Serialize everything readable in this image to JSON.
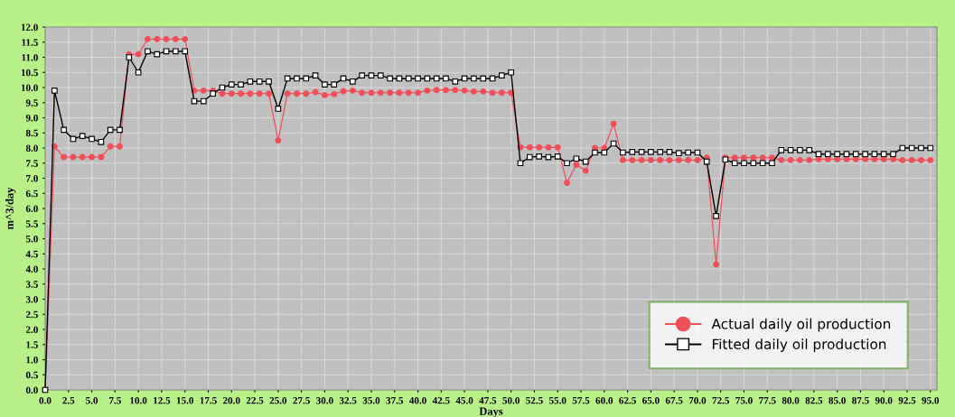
{
  "chart_data": {
    "type": "line",
    "xlabel": "Days",
    "ylabel": "m^3/day",
    "x": [
      0,
      1,
      2,
      3,
      4,
      5,
      6,
      7,
      8,
      9,
      10,
      11,
      12,
      13,
      14,
      15,
      16,
      17,
      18,
      19,
      20,
      21,
      22,
      23,
      24,
      25,
      26,
      27,
      28,
      29,
      30,
      31,
      32,
      33,
      34,
      35,
      36,
      37,
      38,
      39,
      40,
      41,
      42,
      43,
      44,
      45,
      46,
      47,
      48,
      49,
      50,
      51,
      52,
      53,
      54,
      55,
      56,
      57,
      58,
      59,
      60,
      61,
      62,
      63,
      64,
      65,
      66,
      67,
      68,
      69,
      70,
      71,
      72,
      73,
      74,
      75,
      76,
      77,
      78,
      79,
      80,
      81,
      82,
      83,
      84,
      85,
      86,
      87,
      88,
      89,
      90,
      91,
      92,
      93,
      94,
      95
    ],
    "series": [
      {
        "name": "Actual daily oil production",
        "color": "#f0505a",
        "marker": "circle",
        "values": [
          0,
          8.05,
          7.7,
          7.7,
          7.7,
          7.7,
          7.7,
          8.05,
          8.05,
          11.1,
          11.1,
          11.6,
          11.6,
          11.6,
          11.6,
          11.6,
          9.9,
          9.9,
          9.9,
          9.8,
          9.8,
          9.8,
          9.8,
          9.8,
          9.8,
          8.25,
          9.8,
          9.8,
          9.8,
          9.85,
          9.75,
          9.78,
          9.88,
          9.9,
          9.83,
          9.83,
          9.83,
          9.83,
          9.83,
          9.83,
          9.83,
          9.9,
          9.92,
          9.92,
          9.92,
          9.9,
          9.87,
          9.87,
          9.83,
          9.83,
          9.83,
          8.02,
          8.02,
          8.02,
          8.02,
          8.02,
          6.85,
          7.45,
          7.25,
          8.0,
          8.0,
          8.8,
          7.6,
          7.6,
          7.6,
          7.6,
          7.6,
          7.6,
          7.6,
          7.6,
          7.6,
          7.68,
          4.15,
          7.68,
          7.68,
          7.68,
          7.68,
          7.68,
          7.68,
          7.6,
          7.6,
          7.6,
          7.6,
          7.63,
          7.63,
          7.63,
          7.63,
          7.63,
          7.63,
          7.63,
          7.63,
          7.63,
          7.6,
          7.6,
          7.6,
          7.6
        ]
      },
      {
        "name": "Fitted daily oil production",
        "color": "#000000",
        "marker": "square",
        "values": [
          0,
          9.9,
          8.6,
          8.3,
          8.4,
          8.3,
          8.2,
          8.6,
          8.6,
          11.0,
          10.5,
          11.2,
          11.1,
          11.2,
          11.2,
          11.2,
          9.55,
          9.55,
          9.8,
          10.0,
          10.1,
          10.1,
          10.2,
          10.2,
          10.2,
          9.3,
          10.3,
          10.3,
          10.3,
          10.4,
          10.1,
          10.1,
          10.3,
          10.2,
          10.4,
          10.4,
          10.4,
          10.3,
          10.3,
          10.3,
          10.3,
          10.3,
          10.3,
          10.3,
          10.2,
          10.3,
          10.3,
          10.3,
          10.3,
          10.4,
          10.5,
          7.5,
          7.7,
          7.72,
          7.7,
          7.72,
          7.5,
          7.65,
          7.55,
          7.85,
          7.85,
          8.15,
          7.85,
          7.87,
          7.87,
          7.87,
          7.87,
          7.87,
          7.83,
          7.85,
          7.85,
          7.55,
          5.75,
          7.62,
          7.5,
          7.5,
          7.5,
          7.5,
          7.5,
          7.93,
          7.93,
          7.93,
          7.93,
          7.8,
          7.8,
          7.8,
          7.8,
          7.8,
          7.8,
          7.8,
          7.8,
          7.8,
          8.0,
          8.0,
          8.0,
          8.0
        ]
      }
    ],
    "xlim": [
      0,
      95.7
    ],
    "ylim": [
      0,
      12.0
    ],
    "xticks": [
      {
        "value": 0,
        "label": "0.0"
      },
      2.5,
      {
        "value": 5,
        "label": "5.0"
      },
      7.5,
      {
        "value": 10,
        "label": "10.0"
      },
      12.5,
      {
        "value": 15,
        "label": "15.0"
      },
      17.5,
      {
        "value": 20,
        "label": "20.0"
      },
      22.5,
      {
        "value": 25,
        "label": "25.0"
      },
      27.5,
      {
        "value": 30,
        "label": "30.0"
      },
      32.5,
      {
        "value": 35,
        "label": "35.0"
      },
      37.5,
      {
        "value": 40,
        "label": "40.0"
      },
      42.5,
      {
        "value": 45,
        "label": "45.0"
      },
      47.5,
      {
        "value": 50,
        "label": "50.0"
      },
      52.5,
      {
        "value": 55,
        "label": "55.0"
      },
      57.5,
      {
        "value": 60,
        "label": "60.0"
      },
      62.5,
      {
        "value": 65,
        "label": "65.0"
      },
      67.5,
      {
        "value": 70,
        "label": "70.0"
      },
      72.5,
      {
        "value": 75,
        "label": "75.0"
      },
      77.5,
      {
        "value": 80,
        "label": "80.0"
      },
      82.5,
      {
        "value": 85,
        "label": "85.0"
      },
      87.5,
      {
        "value": 90,
        "label": "90.0"
      },
      92.5,
      {
        "value": 95,
        "label": "95.0"
      }
    ],
    "yticks": [
      {
        "value": 0,
        "label": "0.0"
      },
      0.5,
      {
        "value": 1,
        "label": "1.0"
      },
      1.5,
      {
        "value": 2,
        "label": "2.0"
      },
      2.5,
      {
        "value": 3,
        "label": "3.0"
      },
      3.5,
      {
        "value": 4,
        "label": "4.0"
      },
      4.5,
      {
        "value": 5,
        "label": "5.0"
      },
      5.5,
      {
        "value": 6,
        "label": "6.0"
      },
      6.5,
      {
        "value": 7,
        "label": "7.0"
      },
      7.5,
      {
        "value": 8,
        "label": "8.0"
      },
      8.5,
      {
        "value": 9,
        "label": "9.0"
      },
      9.5,
      {
        "value": 10,
        "label": "10.0"
      },
      10.5,
      {
        "value": 11,
        "label": "11.0"
      },
      11.5,
      {
        "value": 12,
        "label": "12.0"
      }
    ],
    "grid": true,
    "legend": "bottom right",
    "line_style": "solid"
  }
}
